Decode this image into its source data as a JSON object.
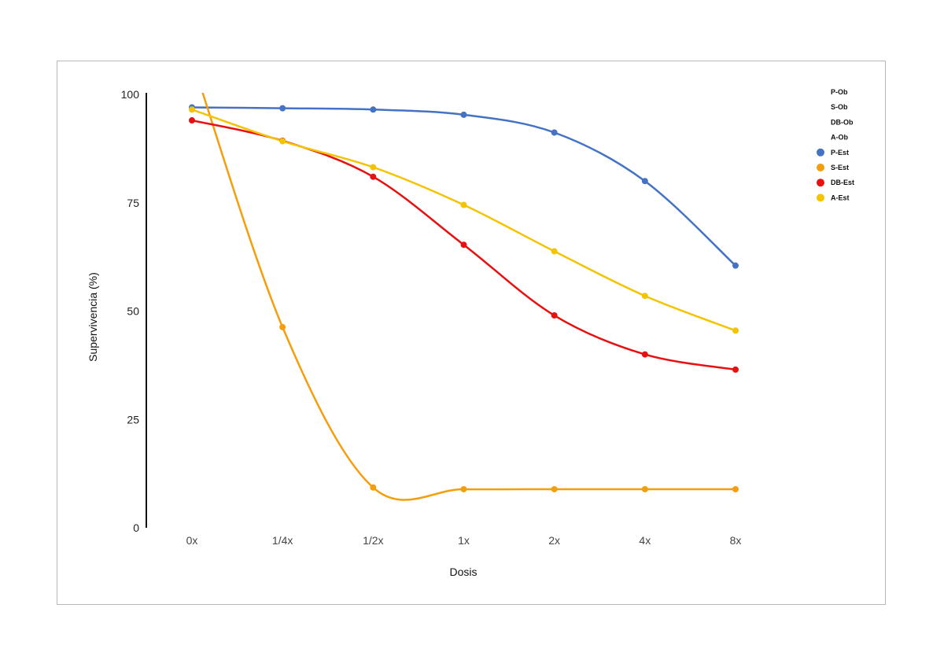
{
  "chart_data": {
    "type": "line",
    "title": "",
    "xlabel": "Dosis",
    "ylabel": "Supervivencia (%)",
    "ylim": [
      0,
      100
    ],
    "yticks": [
      "0",
      "25",
      "50",
      "75",
      "100"
    ],
    "categories": [
      "0x",
      "1/4x",
      "1/2x",
      "1x",
      "2x",
      "4x",
      "8x"
    ],
    "grid": false,
    "legend_position": "top-right",
    "legend_entries": [
      "P-Ob",
      "S-Ob",
      "DB-Ob",
      "A-Ob",
      "P-Est",
      "S-Est",
      "DB-Est",
      "A-Est"
    ],
    "series": [
      {
        "name": "P-Est",
        "color": "#4472C4",
        "values": [
          97,
          96.8,
          96.5,
          95.3,
          91.2,
          80,
          60.5
        ]
      },
      {
        "name": "S-Est",
        "color": "#F59E0B",
        "values": [
          108,
          46.3,
          9.3,
          8.9,
          8.9,
          8.9,
          8.9
        ]
      },
      {
        "name": "DB-Est",
        "color": "#E81010",
        "values": [
          94,
          89.3,
          81,
          65.3,
          49,
          40,
          36.5
        ]
      },
      {
        "name": "A-Est",
        "color": "#F5C400",
        "values": [
          96.5,
          89.2,
          83.2,
          74.5,
          63.8,
          53.5,
          45.5
        ]
      }
    ]
  }
}
